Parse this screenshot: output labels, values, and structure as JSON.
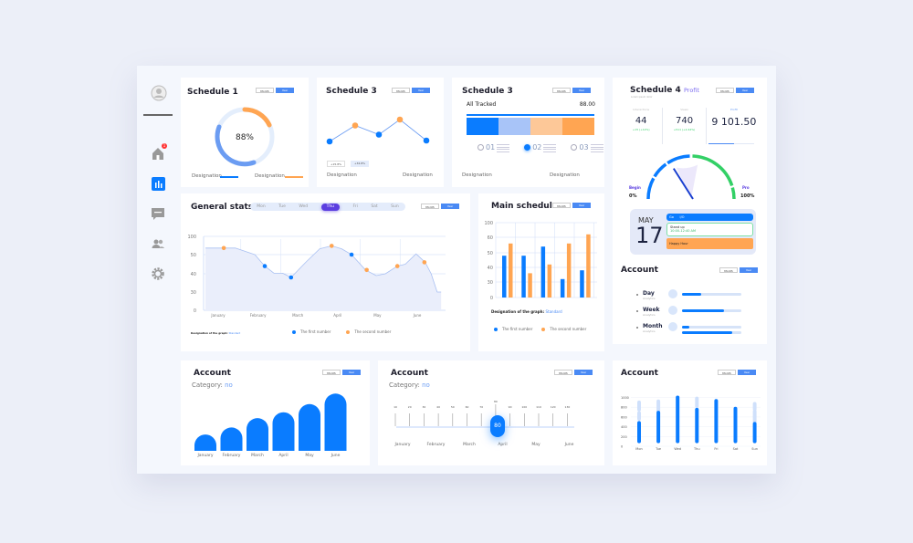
{
  "colors": {
    "blue": "#0a7cff",
    "orange": "#ffa552",
    "lightblue": "#a8c4f8",
    "peach": "#fdc898",
    "green": "#33d066",
    "purple": "#5b3ee0",
    "lilac": "#7c6cf0"
  },
  "sidebar": {
    "items": [
      {
        "icon": "avatar-icon"
      },
      {
        "icon": "home-icon",
        "badge": "1"
      },
      {
        "icon": "bar-chart-icon",
        "active": true
      },
      {
        "icon": "message-icon"
      },
      {
        "icon": "users-icon"
      },
      {
        "icon": "gear-icon"
      }
    ]
  },
  "toggle": {
    "month": "Month",
    "year": "Year"
  },
  "schedule1": {
    "title": "Schedule 1",
    "value": "88%",
    "percent": 88,
    "legend": [
      "Designation",
      "Designation"
    ]
  },
  "schedule3a": {
    "title": "Schedule 3",
    "points": [
      20,
      55,
      35,
      68,
      22
    ],
    "badges": [
      "+15.8%",
      "+34.8%"
    ],
    "legend": [
      "Designation",
      "Designation"
    ]
  },
  "schedule3b": {
    "title": "Schedule 3",
    "tracked_label": "All Tracked",
    "tracked_value": "88.00",
    "segments": [
      25,
      25,
      25,
      25
    ],
    "steps": [
      "01",
      "02",
      "03"
    ],
    "active_step": 1,
    "legend": [
      "Designation",
      "Designation"
    ]
  },
  "schedule4": {
    "title": "Schedule 4",
    "tag": "Profit",
    "subtitle": "Lorem ipsum dolor",
    "stats": [
      {
        "label": "Interactions",
        "value": "44",
        "delta": "+15 (+12%)"
      },
      {
        "label": "Views",
        "value": "740",
        "delta": "+511 (+2.44%)"
      },
      {
        "label": "Profit",
        "value": "9 101.50"
      }
    ],
    "gauge": {
      "begin_label": "Begin",
      "begin_value": "0%",
      "end_label": "Pro",
      "end_value": "100%",
      "value": 36
    }
  },
  "calendar": {
    "month": "MAY",
    "day": "17",
    "events": [
      {
        "title": "Go",
        "time": "I/O"
      },
      {
        "title": "Stand up",
        "time": "10:00-12:40 AM"
      },
      {
        "title": "Happy Hour"
      }
    ]
  },
  "account_progress": {
    "title": "Account",
    "rows": [
      {
        "label": "Day",
        "sub": "Analytics",
        "values": [
          0.33
        ]
      },
      {
        "label": "Week",
        "sub": "Analytics",
        "values": [
          0.7
        ]
      },
      {
        "label": "Month",
        "sub": "Analytics",
        "values": [
          0.12,
          0.85
        ]
      }
    ]
  },
  "general": {
    "title": "General stats",
    "days": [
      "Mon",
      "Tue",
      "Wed",
      "Thu",
      "Fri",
      "Sat",
      "Sun"
    ],
    "active_day": "Thu",
    "caption_label": "Designation of the graph:",
    "caption_value": "Standard"
  },
  "main_schedule": {
    "title": "Main schedule",
    "caption_label": "Designation of the graph:",
    "caption_value": "Standard"
  },
  "account1": {
    "title": "Account",
    "category_label": "Category:",
    "category_value": "no"
  },
  "account2": {
    "title": "Account",
    "category_label": "Category:",
    "category_value": "no",
    "ticks": [
      "10",
      "20",
      "30",
      "40",
      "50",
      "60",
      "70",
      "80",
      "90",
      "100",
      "110",
      "120",
      "130"
    ],
    "slider_value": "80",
    "months": [
      "January",
      "February",
      "March",
      "April",
      "May",
      "June"
    ]
  },
  "account3": {
    "title": "Account"
  },
  "chart_data": [
    {
      "type": "area",
      "id": "general-stats",
      "categories": [
        "January",
        "February",
        "March",
        "April",
        "May",
        "June"
      ],
      "yticks": [
        "100",
        "50",
        "40",
        "30",
        "0"
      ],
      "ytick_values": [
        100,
        50,
        40,
        30,
        0
      ],
      "grid": true,
      "legend": [
        "The first number",
        "The second number"
      ],
      "legend_position": "bottom",
      "curve": [
        [
          -0.32,
          68
        ],
        [
          0.43,
          68
        ],
        [
          0.92,
          50
        ],
        [
          1.17,
          44
        ],
        [
          1.4,
          40.3
        ],
        [
          1.62,
          40.3
        ],
        [
          1.83,
          38
        ],
        [
          2.2,
          46
        ],
        [
          2.55,
          66
        ],
        [
          2.85,
          74
        ],
        [
          3.1,
          66
        ],
        [
          3.35,
          50
        ],
        [
          3.7,
          42
        ],
        [
          3.97,
          39
        ],
        [
          4.2,
          40
        ],
        [
          4.5,
          44
        ],
        [
          4.7,
          45
        ],
        [
          4.97,
          52
        ],
        [
          5.2,
          46
        ],
        [
          5.35,
          40
        ],
        [
          5.5,
          30
        ],
        [
          5.6,
          30
        ]
      ],
      "series": [
        {
          "name": "The first number",
          "points": [
            [
              1.17,
              44
            ],
            [
              1.83,
              38
            ],
            [
              3.35,
              50
            ]
          ]
        },
        {
          "name": "The second number",
          "points": [
            [
              0.14,
              68
            ],
            [
              2.85,
              74
            ],
            [
              3.73,
              42
            ],
            [
              4.5,
              44
            ],
            [
              5.18,
              46
            ]
          ]
        }
      ]
    },
    {
      "type": "bar",
      "id": "main-schedule",
      "yticks": [
        "100",
        "60",
        "50",
        "40",
        "30",
        "0"
      ],
      "ytick_values": [
        100,
        60,
        50,
        40,
        30,
        0
      ],
      "grid": true,
      "legend": [
        "The first number",
        "The second number"
      ],
      "legend_position": "bottom",
      "series": [
        {
          "name": "The first number",
          "values": [
            48,
            48,
            54,
            32,
            38
          ]
        },
        {
          "name": "The second number",
          "values": [
            56,
            36,
            42,
            56,
            68
          ]
        }
      ]
    },
    {
      "type": "bar",
      "id": "account-monthly",
      "categories": [
        "January",
        "February",
        "March",
        "April",
        "May",
        "June"
      ],
      "values": [
        28,
        40,
        56,
        66,
        80,
        98
      ]
    },
    {
      "type": "bar",
      "id": "account-weekly",
      "categories": [
        "Mon",
        "Tue",
        "Wed",
        "Thu",
        "Fri",
        "Sat",
        "Sun"
      ],
      "yticks": [
        "1000",
        "800",
        "600",
        "400",
        "200",
        "0"
      ],
      "ylim": [
        0,
        1000
      ],
      "series": [
        {
          "values": [
            480,
            690,
            1000,
            750,
            930,
            770,
            460
          ]
        }
      ],
      "secondary": [
        [
          [
            560,
            680
          ],
          [
            750,
            900
          ]
        ],
        [
          [
            730,
            920
          ]
        ],
        [],
        [
          [
            820,
            980
          ]
        ],
        [],
        [],
        [
          [
            500,
            710
          ],
          [
            760,
            870
          ]
        ]
      ]
    }
  ]
}
